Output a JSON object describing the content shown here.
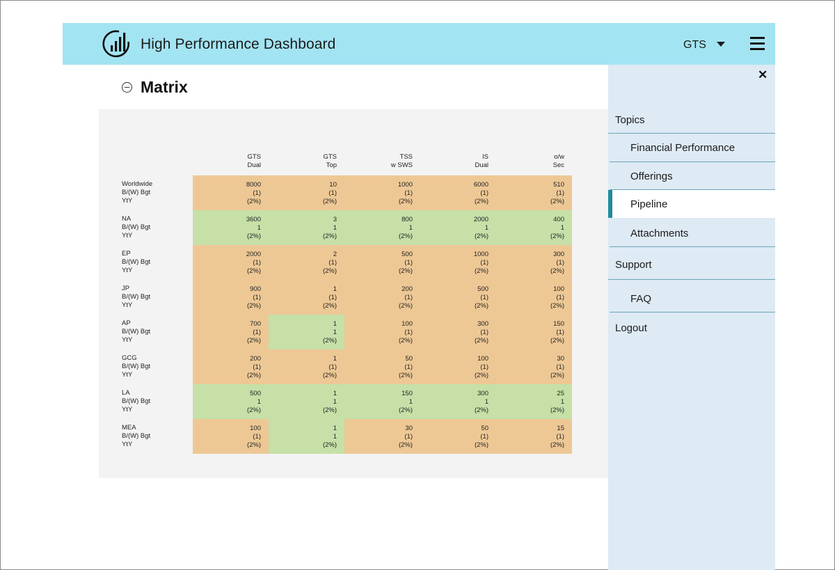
{
  "header": {
    "title": "High Performance Dashboard",
    "selector_value": "GTS"
  },
  "section": {
    "title": "Matrix"
  },
  "matrix": {
    "columns": [
      {
        "line1": "GTS",
        "line2": "Dual"
      },
      {
        "line1": "GTS",
        "line2": "Top"
      },
      {
        "line1": "TSS",
        "line2": "w SWS"
      },
      {
        "line1": "IS",
        "line2": "Dual"
      },
      {
        "line1": "o/w",
        "line2": "Sec"
      }
    ],
    "rows": [
      {
        "name": "Worldwide",
        "metric1": "B/(W) Bgt",
        "metric2": "YtY",
        "cells": [
          {
            "value": "8000",
            "bgt": "(1)",
            "yty": "(2%)",
            "status": "orange"
          },
          {
            "value": "10",
            "bgt": "(1)",
            "yty": "(2%)",
            "status": "orange"
          },
          {
            "value": "1000",
            "bgt": "(1)",
            "yty": "(2%)",
            "status": "orange"
          },
          {
            "value": "6000",
            "bgt": "(1)",
            "yty": "(2%)",
            "status": "orange"
          },
          {
            "value": "510",
            "bgt": "(1)",
            "yty": "(2%)",
            "status": "orange"
          }
        ]
      },
      {
        "name": "NA",
        "metric1": "B/(W) Bgt",
        "metric2": "YtY",
        "cells": [
          {
            "value": "3600",
            "bgt": "1",
            "yty": "(2%)",
            "status": "green"
          },
          {
            "value": "3",
            "bgt": "1",
            "yty": "(2%)",
            "status": "green"
          },
          {
            "value": "800",
            "bgt": "1",
            "yty": "(2%)",
            "status": "green"
          },
          {
            "value": "2000",
            "bgt": "1",
            "yty": "(2%)",
            "status": "green"
          },
          {
            "value": "400",
            "bgt": "1",
            "yty": "(2%)",
            "status": "green"
          }
        ]
      },
      {
        "name": "EP",
        "metric1": "B/(W) Bgt",
        "metric2": "YtY",
        "cells": [
          {
            "value": "2000",
            "bgt": "(1)",
            "yty": "(2%)",
            "status": "orange"
          },
          {
            "value": "2",
            "bgt": "(1)",
            "yty": "(2%)",
            "status": "orange"
          },
          {
            "value": "500",
            "bgt": "(1)",
            "yty": "(2%)",
            "status": "orange"
          },
          {
            "value": "1000",
            "bgt": "(1)",
            "yty": "(2%)",
            "status": "orange"
          },
          {
            "value": "300",
            "bgt": "(1)",
            "yty": "(2%)",
            "status": "orange"
          }
        ]
      },
      {
        "name": "JP",
        "metric1": "B/(W) Bgt",
        "metric2": "YtY",
        "cells": [
          {
            "value": "900",
            "bgt": "(1)",
            "yty": "(2%)",
            "status": "orange"
          },
          {
            "value": "1",
            "bgt": "(1)",
            "yty": "(2%)",
            "status": "orange"
          },
          {
            "value": "200",
            "bgt": "(1)",
            "yty": "(2%)",
            "status": "orange"
          },
          {
            "value": "500",
            "bgt": "(1)",
            "yty": "(2%)",
            "status": "orange"
          },
          {
            "value": "100",
            "bgt": "(1)",
            "yty": "(2%)",
            "status": "orange"
          }
        ]
      },
      {
        "name": "AP",
        "metric1": "B/(W) Bgt",
        "metric2": "YtY",
        "cells": [
          {
            "value": "700",
            "bgt": "(1)",
            "yty": "(2%)",
            "status": "orange"
          },
          {
            "value": "1",
            "bgt": "1",
            "yty": "(2%)",
            "status": "green"
          },
          {
            "value": "100",
            "bgt": "(1)",
            "yty": "(2%)",
            "status": "orange"
          },
          {
            "value": "300",
            "bgt": "(1)",
            "yty": "(2%)",
            "status": "orange"
          },
          {
            "value": "150",
            "bgt": "(1)",
            "yty": "(2%)",
            "status": "orange"
          }
        ]
      },
      {
        "name": "GCG",
        "metric1": "B/(W) Bgt",
        "metric2": "YtY",
        "cells": [
          {
            "value": "200",
            "bgt": "(1)",
            "yty": "(2%)",
            "status": "orange"
          },
          {
            "value": "1",
            "bgt": "(1)",
            "yty": "(2%)",
            "status": "orange"
          },
          {
            "value": "50",
            "bgt": "(1)",
            "yty": "(2%)",
            "status": "orange"
          },
          {
            "value": "100",
            "bgt": "(1)",
            "yty": "(2%)",
            "status": "orange"
          },
          {
            "value": "30",
            "bgt": "(1)",
            "yty": "(2%)",
            "status": "orange"
          }
        ]
      },
      {
        "name": "LA",
        "metric1": "B/(W) Bgt",
        "metric2": "YtY",
        "cells": [
          {
            "value": "500",
            "bgt": "1",
            "yty": "(2%)",
            "status": "green"
          },
          {
            "value": "1",
            "bgt": "1",
            "yty": "(2%)",
            "status": "green"
          },
          {
            "value": "150",
            "bgt": "1",
            "yty": "(2%)",
            "status": "green"
          },
          {
            "value": "300",
            "bgt": "1",
            "yty": "(2%)",
            "status": "green"
          },
          {
            "value": "25",
            "bgt": "1",
            "yty": "(2%)",
            "status": "green"
          }
        ]
      },
      {
        "name": "MEA",
        "metric1": "B/(W) Bgt",
        "metric2": "YtY",
        "cells": [
          {
            "value": "100",
            "bgt": "(1)",
            "yty": "(2%)",
            "status": "orange"
          },
          {
            "value": "1",
            "bgt": "1",
            "yty": "(2%)",
            "status": "green"
          },
          {
            "value": "30",
            "bgt": "(1)",
            "yty": "(2%)",
            "status": "orange"
          },
          {
            "value": "50",
            "bgt": "(1)",
            "yty": "(2%)",
            "status": "orange"
          },
          {
            "value": "15",
            "bgt": "(1)",
            "yty": "(2%)",
            "status": "orange"
          }
        ]
      }
    ]
  },
  "drawer": {
    "close_label": "✕",
    "items": [
      {
        "label": "Topics",
        "level": "section",
        "active": false
      },
      {
        "label": "Financial Performance",
        "level": "sub",
        "active": false
      },
      {
        "label": "Offerings",
        "level": "sub",
        "active": false
      },
      {
        "label": "Pipeline",
        "level": "sub",
        "active": true
      },
      {
        "label": "Attachments",
        "level": "sub",
        "active": false
      },
      {
        "label": "Support",
        "level": "section",
        "active": false
      },
      {
        "label": "FAQ",
        "level": "sub",
        "active": false
      },
      {
        "label": "Logout",
        "level": "section",
        "active": false
      }
    ]
  },
  "colors": {
    "header_bg": "#a3e4f2",
    "drawer_bg": "#deeaf4",
    "cell_below": "#edc895",
    "cell_above": "#c6e0a8",
    "active_accent": "#1f8b9c"
  }
}
